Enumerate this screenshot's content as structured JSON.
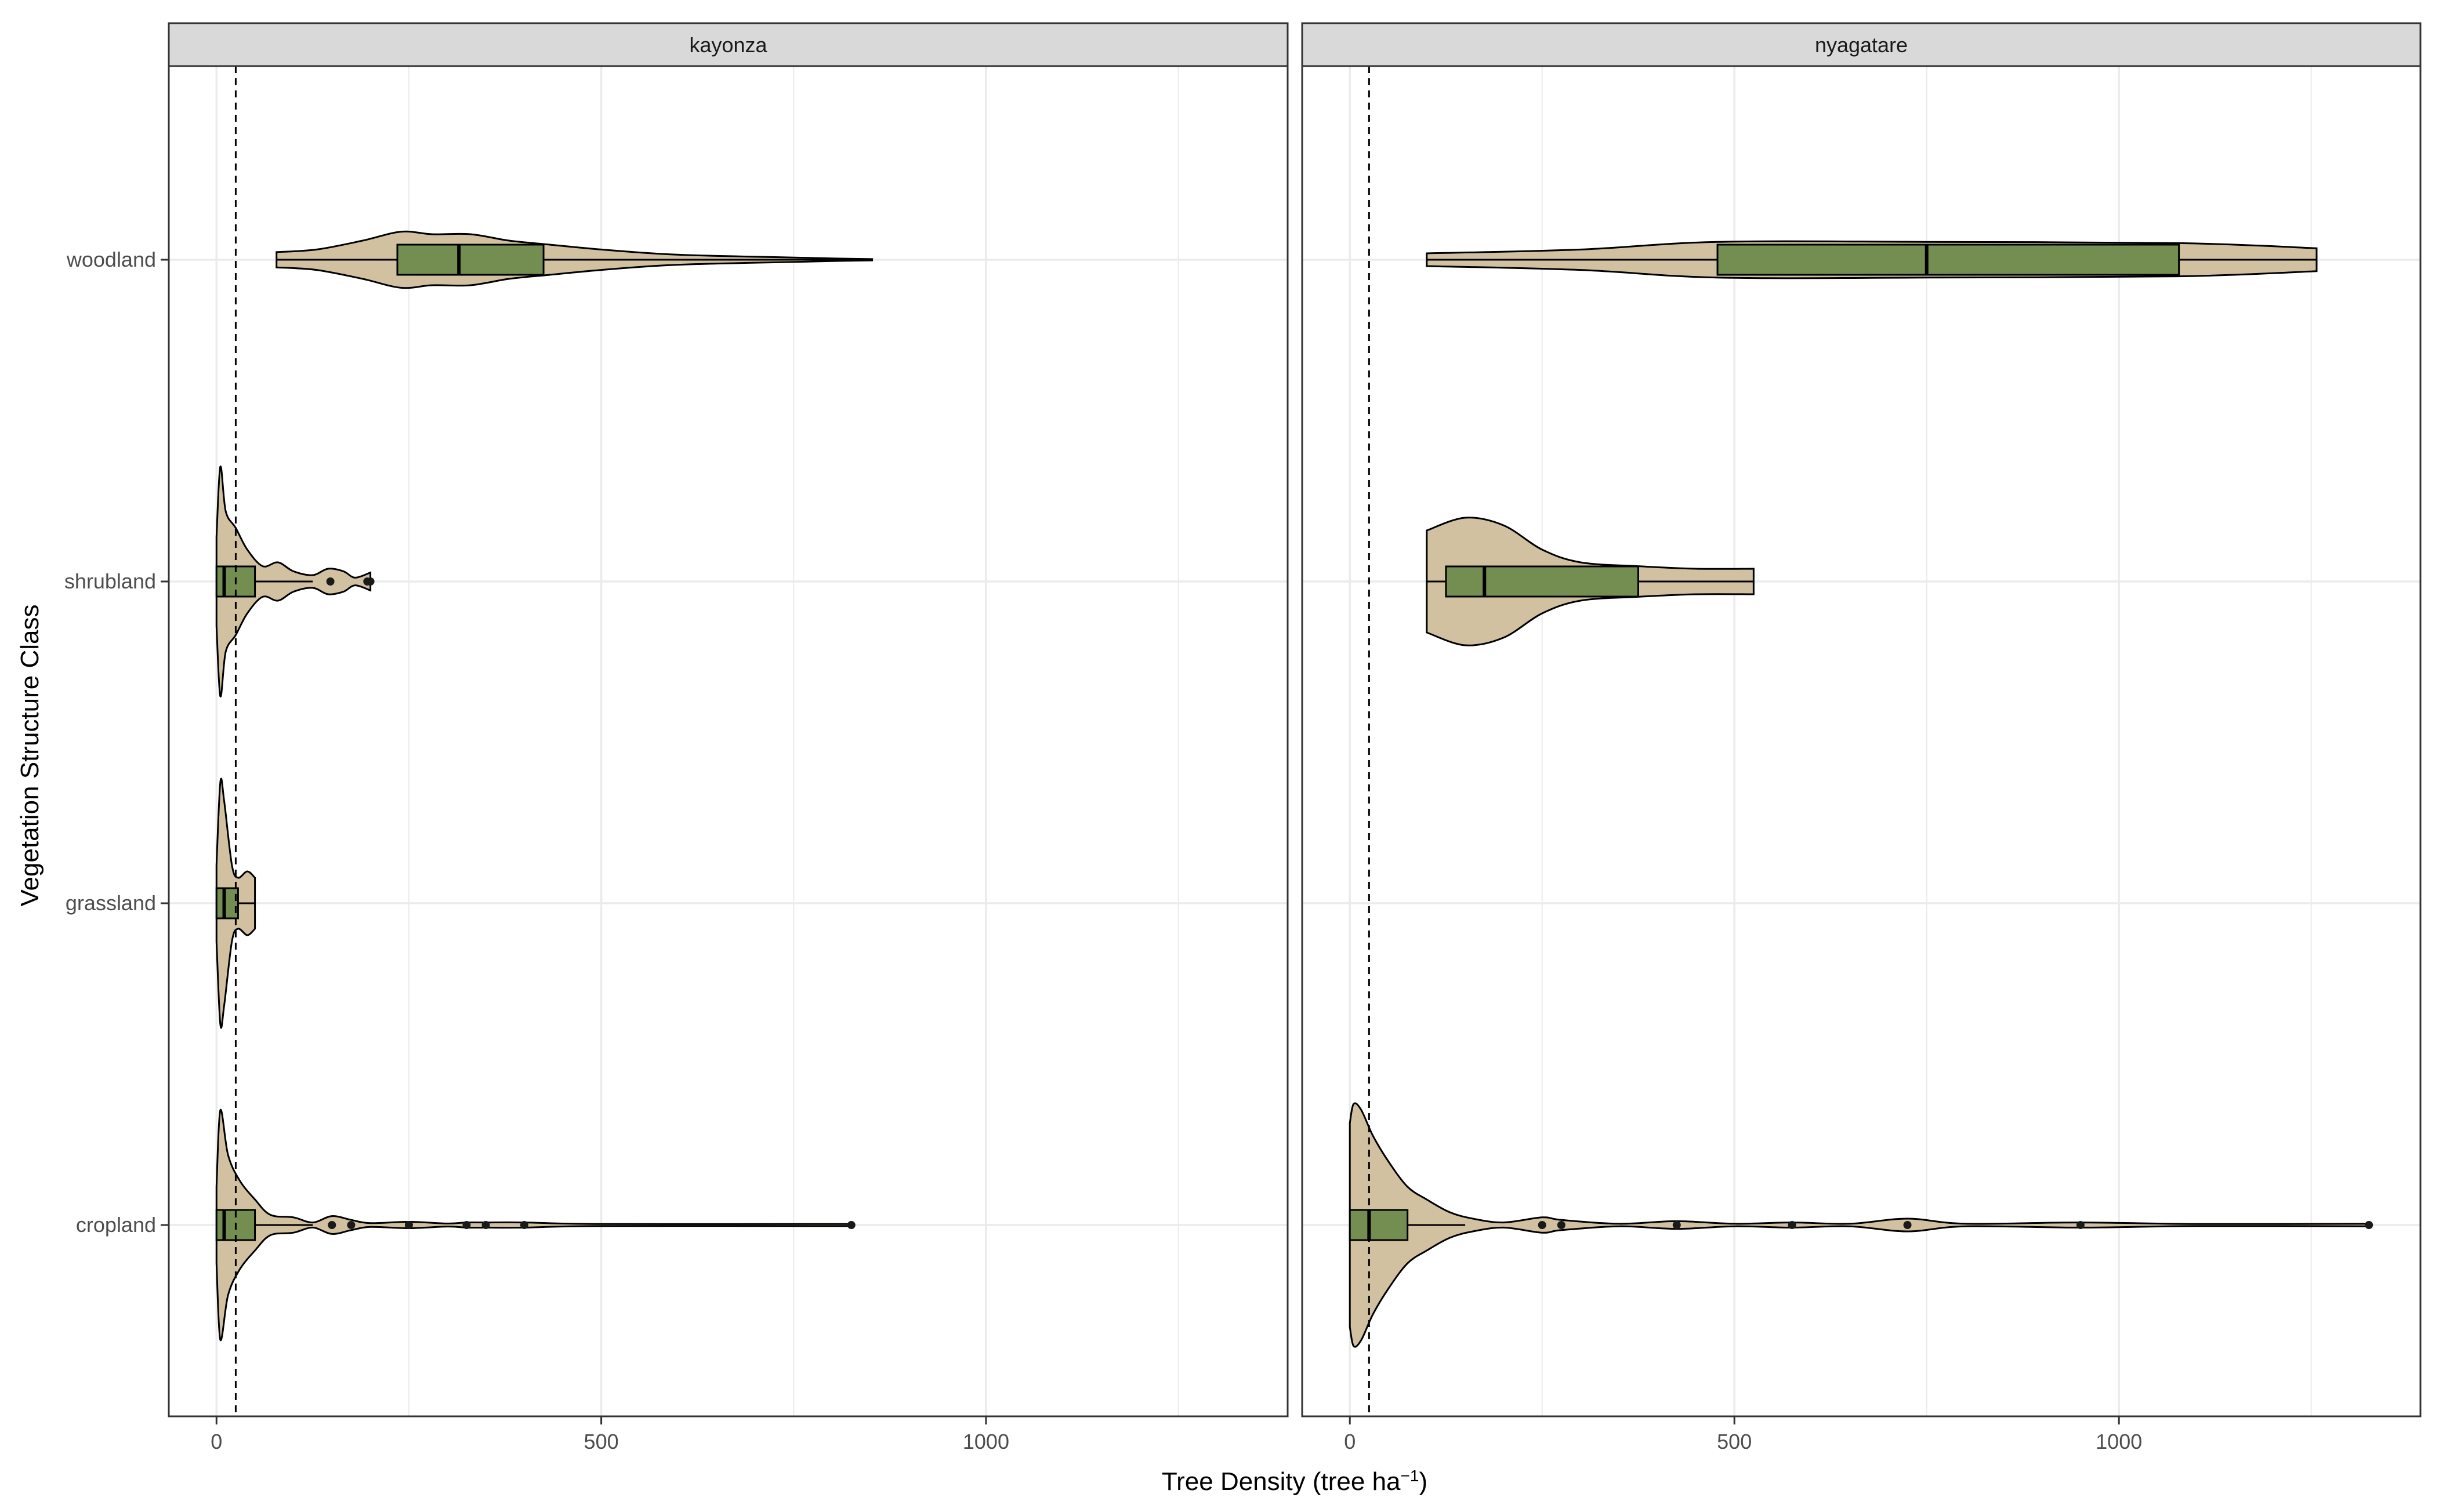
{
  "chart_data": {
    "type": "violin",
    "xlabel": "Tree Density (tree ha",
    "xlabel_sup": "−1",
    "xlabel_close": ")",
    "ylabel": "Vegetation Structure Class",
    "categories": [
      "woodland",
      "shrubland",
      "grassland",
      "cropland"
    ],
    "xticks": [
      0,
      500,
      1000
    ],
    "xlim": [
      -62,
      1392
    ],
    "reference_line_x": 25,
    "grid": true,
    "colors": {
      "violin_fill": "#d2c1a1",
      "box_fill": "#6b8a4a",
      "strip_fill": "#d9d9d9",
      "line": "#000000",
      "grid": "#ebebeb"
    },
    "panels": [
      {
        "name": "kayonza",
        "groups": {
          "woodland": {
            "min": 78,
            "q1": 235,
            "median": 315,
            "q3": 425,
            "max": 852,
            "outliers": [],
            "density": [
              [
                78,
                0.06
              ],
              [
                130,
                0.08
              ],
              [
                190,
                0.15
              ],
              [
                240,
                0.22
              ],
              [
                280,
                0.2
              ],
              [
                330,
                0.2
              ],
              [
                380,
                0.15
              ],
              [
                430,
                0.12
              ],
              [
                500,
                0.08
              ],
              [
                580,
                0.045
              ],
              [
                650,
                0.03
              ],
              [
                730,
                0.02
              ],
              [
                800,
                0.01
              ],
              [
                852,
                0.005
              ]
            ]
          },
          "shrubland": {
            "min": 0,
            "q1": 0,
            "median": 10,
            "q3": 50,
            "max": 125,
            "outliers": [
              148,
              196,
              200
            ],
            "density": [
              [
                0,
                0.35
              ],
              [
                5,
                0.9
              ],
              [
                12,
                0.55
              ],
              [
                25,
                0.42
              ],
              [
                40,
                0.25
              ],
              [
                60,
                0.12
              ],
              [
                80,
                0.15
              ],
              [
                100,
                0.08
              ],
              [
                125,
                0.05
              ],
              [
                145,
                0.1
              ],
              [
                165,
                0.08
              ],
              [
                180,
                0.03
              ],
              [
                200,
                0.07
              ]
            ]
          },
          "grassland": {
            "min": 0,
            "q1": 0,
            "median": 10,
            "q3": 28,
            "max": 50,
            "outliers": [],
            "density": [
              [
                0,
                0.3
              ],
              [
                5,
                0.95
              ],
              [
                10,
                0.8
              ],
              [
                20,
                0.3
              ],
              [
                28,
                0.2
              ],
              [
                40,
                0.25
              ],
              [
                50,
                0.2
              ]
            ]
          },
          "cropland": {
            "min": 0,
            "q1": 0,
            "median": 10,
            "q3": 50,
            "max": 125,
            "outliers": [
              150,
              175,
              250,
              325,
              350,
              400,
              825
            ],
            "density": [
              [
                0,
                0.3
              ],
              [
                5,
                0.9
              ],
              [
                15,
                0.55
              ],
              [
                30,
                0.35
              ],
              [
                50,
                0.2
              ],
              [
                70,
                0.08
              ],
              [
                100,
                0.06
              ],
              [
                125,
                0.02
              ],
              [
                150,
                0.07
              ],
              [
                175,
                0.04
              ],
              [
                200,
                0.015
              ],
              [
                250,
                0.025
              ],
              [
                300,
                0.012
              ],
              [
                325,
                0.02
              ],
              [
                350,
                0.02
              ],
              [
                400,
                0.02
              ],
              [
                500,
                0.008
              ],
              [
                825,
                0.008
              ]
            ]
          }
        }
      },
      {
        "name": "nyagatare",
        "groups": {
          "woodland": {
            "min": 100,
            "q1": 478,
            "median": 750,
            "q3": 1078,
            "max": 1257,
            "outliers": [],
            "density": [
              [
                100,
                0.05
              ],
              [
                300,
                0.08
              ],
              [
                478,
                0.14
              ],
              [
                750,
                0.14
              ],
              [
                1078,
                0.13
              ],
              [
                1257,
                0.09
              ]
            ]
          },
          "shrubland": {
            "min": 100,
            "q1": 125,
            "median": 175,
            "q3": 375,
            "max": 525,
            "outliers": [],
            "density": [
              [
                100,
                0.4
              ],
              [
                150,
                0.5
              ],
              [
                200,
                0.44
              ],
              [
                250,
                0.25
              ],
              [
                300,
                0.15
              ],
              [
                375,
                0.12
              ],
              [
                450,
                0.1
              ],
              [
                525,
                0.1
              ]
            ]
          },
          "cropland": {
            "min": 0,
            "q1": 0,
            "median": 25,
            "q3": 75,
            "max": 150,
            "outliers": [
              250,
              275,
              425,
              575,
              725,
              950,
              1325
            ],
            "density": [
              [
                0,
                0.8
              ],
              [
                5,
                0.95
              ],
              [
                15,
                0.9
              ],
              [
                30,
                0.7
              ],
              [
                50,
                0.5
              ],
              [
                75,
                0.3
              ],
              [
                100,
                0.2
              ],
              [
                130,
                0.1
              ],
              [
                160,
                0.05
              ],
              [
                200,
                0.02
              ],
              [
                250,
                0.06
              ],
              [
                275,
                0.04
              ],
              [
                350,
                0.01
              ],
              [
                425,
                0.03
              ],
              [
                500,
                0.01
              ],
              [
                575,
                0.02
              ],
              [
                650,
                0.01
              ],
              [
                725,
                0.05
              ],
              [
                800,
                0.01
              ],
              [
                950,
                0.02
              ],
              [
                1100,
                0.008
              ],
              [
                1325,
                0.01
              ]
            ]
          }
        }
      }
    ]
  }
}
